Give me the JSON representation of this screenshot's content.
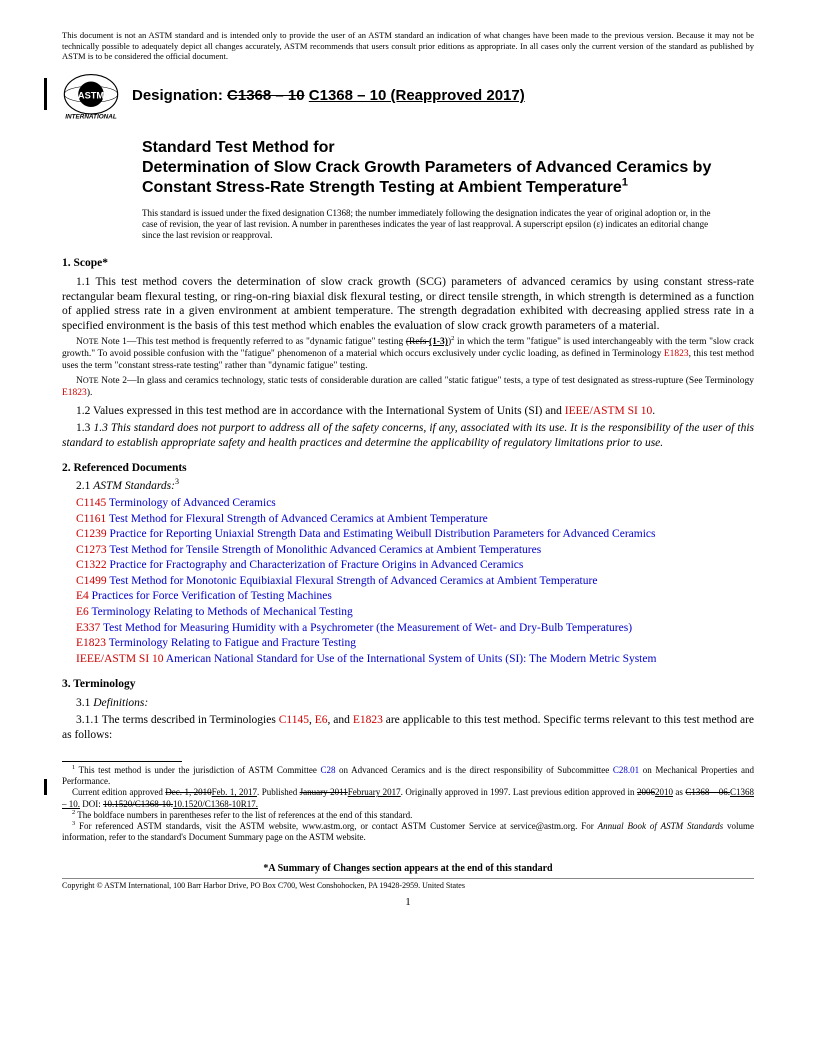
{
  "disclaimer": "This document is not an ASTM standard and is intended only to provide the user of an ASTM standard an indication of what changes have been made to the previous version. Because it may not be technically possible to adequately depict all changes accurately, ASTM recommends that users consult prior editions as appropriate. In all cases only the current version of the standard as published by ASTM is to be considered the official document.",
  "designation_label": "Designation: ",
  "designation_old": "C1368 – 10",
  "designation_new": "C1368 – 10 (Reapproved 2017)",
  "title_line1": "Standard Test Method for",
  "title_line2": "Determination of Slow Crack Growth Parameters of Advanced Ceramics by Constant Stress-Rate Strength Testing at Ambient Temperature",
  "title_fn": "1",
  "issue_note": "This standard is issued under the fixed designation C1368; the number immediately following the designation indicates the year of original adoption or, in the case of revision, the year of last revision. A number in parentheses indicates the year of last reapproval. A superscript epsilon (ε) indicates an editorial change since the last revision or reapproval.",
  "sec1_head": "1.  Scope*",
  "sec1_1": "1.1 This test method covers the determination of slow crack growth (SCG) parameters of advanced ceramics by using constant stress-rate rectangular beam flexural testing, or ring-on-ring biaxial disk flexural testing, or direct tensile strength, in which strength is determined as a function of applied stress rate in a given environment at ambient temperature. The strength degradation exhibited with decreasing applied stress rate in a specified environment is the basis of this test method which enables the evaluation of slow crack growth parameters of a material.",
  "note1_pre": "Note 1—This test method is frequently referred to as \"dynamic fatigue\" testing ",
  "note1_refs_old": "(Refs ",
  "note1_refs_new": "(1-3)",
  "note1_refs_close": ")",
  "note1_fn": "2",
  "note1_mid": " in which the term \"fatigue\" is used interchangeably with the term \"slow crack growth.\" To avoid possible confusion with the \"fatigue\" phenomenon of a material which occurs exclusively under cyclic loading, as defined in Terminology ",
  "note1_ref": "E1823",
  "note1_post": ", this test method uses the term \"constant stress-rate testing\" rather than \"dynamic fatigue\" testing.",
  "note2_pre": "Note 2—In glass and ceramics technology, static tests of considerable duration are called \"static fatigue\" tests, a type of test designated as stress-rupture (See Terminology ",
  "note2_ref": "E1823",
  "note2_post": ").",
  "sec1_2_pre": "1.2 Values expressed in this test method are in accordance with the International System of Units (SI) and ",
  "sec1_2_ref": "IEEE/ASTM SI 10",
  "sec1_2_post": ".",
  "sec1_3": "1.3 This standard does not purport to address all of the safety concerns, if any, associated with its use. It is the responsibility of the user of this standard to establish appropriate safety and health practices and determine the applicability of regulatory limitations prior to use.",
  "sec2_head": "2.  Referenced Documents",
  "sec2_1": "2.1 ",
  "sec2_1_label": "ASTM Standards:",
  "sec2_1_fn": "3",
  "refs": [
    {
      "code": "C1145",
      "title": "Terminology of Advanced Ceramics"
    },
    {
      "code": "C1161",
      "title": "Test Method for Flexural Strength of Advanced Ceramics at Ambient Temperature"
    },
    {
      "code": "C1239",
      "title": "Practice for Reporting Uniaxial Strength Data and Estimating Weibull Distribution Parameters for Advanced Ceramics"
    },
    {
      "code": "C1273",
      "title": "Test Method for Tensile Strength of Monolithic Advanced Ceramics at Ambient Temperatures"
    },
    {
      "code": "C1322",
      "title": "Practice for Fractography and Characterization of Fracture Origins in Advanced Ceramics"
    },
    {
      "code": "C1499",
      "title": "Test Method for Monotonic Equibiaxial Flexural Strength of Advanced Ceramics at Ambient Temperature"
    },
    {
      "code": "E4",
      "title": "Practices for Force Verification of Testing Machines"
    },
    {
      "code": "E6",
      "title": "Terminology Relating to Methods of Mechanical Testing"
    },
    {
      "code": "E337",
      "title": "Test Method for Measuring Humidity with a Psychrometer (the Measurement of Wet- and Dry-Bulb Temperatures)"
    },
    {
      "code": "E1823",
      "title": "Terminology Relating to Fatigue and Fracture Testing"
    },
    {
      "code": "IEEE/ASTM SI 10",
      "title": "American National Standard for Use of the International System of Units (SI): The Modern Metric System"
    }
  ],
  "sec3_head": "3.  Terminology",
  "sec3_1": "3.1 ",
  "sec3_1_label": "Definitions:",
  "sec3_1_1_pre": "3.1.1 The terms described in Terminologies ",
  "sec3_1_1_r1": "C1145",
  "sec3_1_1_c1": ", ",
  "sec3_1_1_r2": "E6",
  "sec3_1_1_c2": ", and ",
  "sec3_1_1_r3": "E1823",
  "sec3_1_1_post": " are applicable to this test method. Specific terms relevant to this test method are as follows:",
  "fn1_pre": " This test method is under the jurisdiction of ASTM Committee ",
  "fn1_r1": "C28",
  "fn1_mid": " on Advanced Ceramics and is the direct responsibility of Subcommittee ",
  "fn1_r2": "C28.01",
  "fn1_post": " on Mechanical Properties and Performance.",
  "fn1b_pre": "Current edition approved ",
  "fn1b_old1": "Dec. 1, 2010",
  "fn1b_new1": "Feb. 1, 2017",
  "fn1b_mid1": ". Published ",
  "fn1b_old2": "January 2011",
  "fn1b_new2": "February 2017",
  "fn1b_mid2": ". Originally approved in 1997. Last previous edition approved in ",
  "fn1b_old3": "2006",
  "fn1b_new3": "2010",
  "fn1b_mid3": " as ",
  "fn1b_old4": "C1368 – 06.",
  "fn1b_new4": "C1368 – 10.",
  "fn1b_mid4": " DOI: ",
  "fn1b_old5": "10.1520/C1368-10.",
  "fn1b_new5": "10.1520/C1368-10R17.",
  "fn2": " The boldface numbers in parentheses refer to the list of references at the end of this standard.",
  "fn3_pre": " For referenced ASTM standards, visit the ASTM website, www.astm.org, or contact ASTM Customer Service at service@astm.org. For ",
  "fn3_ital": "Annual Book of ASTM Standards",
  "fn3_post": " volume information, refer to the standard's Document Summary page on the ASTM website.",
  "summary": "*A Summary of Changes section appears at the end of this standard",
  "copyright": "Copyright © ASTM International, 100 Barr Harbor Drive, PO Box C700, West Conshohocken, PA 19428-2959. United States",
  "pagenum": "1",
  "colors": {
    "link_red": "#cc0000",
    "link_blue": "#0000cc",
    "text": "#000000",
    "bg": "#ffffff"
  }
}
